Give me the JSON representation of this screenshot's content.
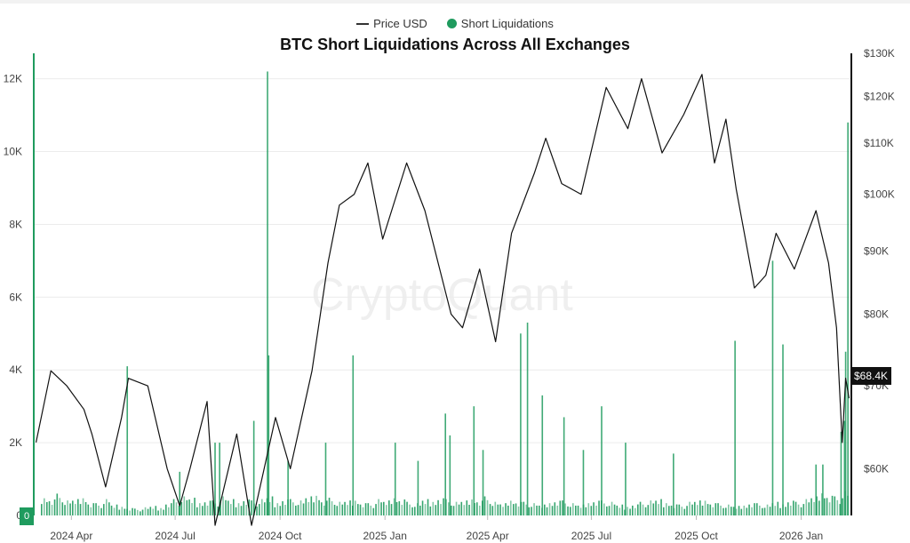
{
  "chart_data": {
    "type": "bar+line",
    "title": "BTC Short Liquidations Across All Exchanges",
    "legend": [
      "Price USD",
      "Short Liquidations"
    ],
    "legend_position": "top",
    "watermark": "CryptoQuant",
    "colors": {
      "price": "#111111",
      "liquidations": "#1f9b5e"
    },
    "x_ticks": [
      "2024 Apr",
      "2024 Jul",
      "2024 Oct",
      "2025 Jan",
      "2025 Apr",
      "2025 Jul",
      "2025 Oct",
      "2026 Jan"
    ],
    "x_tick_dates": [
      "2024-04-01",
      "2024-07-01",
      "2024-10-01",
      "2025-01-01",
      "2025-04-01",
      "2025-07-01",
      "2025-10-01",
      "2026-01-01"
    ],
    "xlim": [
      "2024-02-28",
      "2026-02-14"
    ],
    "left_axis": {
      "ticks": [
        "0",
        "2K",
        "4K",
        "6K",
        "8K",
        "10K",
        "12K"
      ],
      "values": [
        0,
        2000,
        4000,
        6000,
        8000,
        10000,
        12000
      ],
      "ylim": [
        0,
        12700
      ],
      "current_label": "0"
    },
    "right_axis": {
      "scale": "log",
      "ticks": [
        "$60K",
        "$70K",
        "$80K",
        "$90K",
        "$100K",
        "$110K",
        "$120K",
        "$130K"
      ],
      "values": [
        60000,
        70000,
        80000,
        90000,
        100000,
        110000,
        120000,
        130000
      ],
      "ylim": [
        55000,
        130000
      ],
      "current_label": "$68.4K"
    },
    "grid": true,
    "price": [
      [
        "2024-03-01",
        63000
      ],
      [
        "2024-03-14",
        72000
      ],
      [
        "2024-03-28",
        70000
      ],
      [
        "2024-04-12",
        67000
      ],
      [
        "2024-04-19",
        64000
      ],
      [
        "2024-05-01",
        58000
      ],
      [
        "2024-05-15",
        66000
      ],
      [
        "2024-05-21",
        71000
      ],
      [
        "2024-06-07",
        70000
      ],
      [
        "2024-06-24",
        60000
      ],
      [
        "2024-07-05",
        56000
      ],
      [
        "2024-07-14",
        60000
      ],
      [
        "2024-07-29",
        68000
      ],
      [
        "2024-08-05",
        54000
      ],
      [
        "2024-08-24",
        64000
      ],
      [
        "2024-09-06",
        54000
      ],
      [
        "2024-09-27",
        66000
      ],
      [
        "2024-10-10",
        60000
      ],
      [
        "2024-10-29",
        72000
      ],
      [
        "2024-11-12",
        88000
      ],
      [
        "2024-11-22",
        98000
      ],
      [
        "2024-12-05",
        100000
      ],
      [
        "2024-12-17",
        106000
      ],
      [
        "2024-12-30",
        92000
      ],
      [
        "2025-01-20",
        106000
      ],
      [
        "2025-02-05",
        97000
      ],
      [
        "2025-02-28",
        80000
      ],
      [
        "2025-03-10",
        78000
      ],
      [
        "2025-03-25",
        87000
      ],
      [
        "2025-04-08",
        76000
      ],
      [
        "2025-04-22",
        93000
      ],
      [
        "2025-05-12",
        104000
      ],
      [
        "2025-05-22",
        111000
      ],
      [
        "2025-06-05",
        102000
      ],
      [
        "2025-06-22",
        100000
      ],
      [
        "2025-07-14",
        122000
      ],
      [
        "2025-08-02",
        113000
      ],
      [
        "2025-08-14",
        124000
      ],
      [
        "2025-09-01",
        108000
      ],
      [
        "2025-09-20",
        116000
      ],
      [
        "2025-10-06",
        125000
      ],
      [
        "2025-10-17",
        106000
      ],
      [
        "2025-10-27",
        115000
      ],
      [
        "2025-11-05",
        101000
      ],
      [
        "2025-11-21",
        84000
      ],
      [
        "2025-12-01",
        86000
      ],
      [
        "2025-12-10",
        93000
      ],
      [
        "2025-12-26",
        87000
      ],
      [
        "2026-01-14",
        97000
      ],
      [
        "2026-01-25",
        88000
      ],
      [
        "2026-02-01",
        78000
      ],
      [
        "2026-02-06",
        63000
      ],
      [
        "2026-02-09",
        71000
      ],
      [
        "2026-02-12",
        68400
      ]
    ],
    "short_liquidations_spikes": [
      [
        "2024-05-20",
        4100
      ],
      [
        "2024-07-05",
        1200
      ],
      [
        "2024-08-05",
        2000
      ],
      [
        "2024-08-09",
        2000
      ],
      [
        "2024-09-08",
        2600
      ],
      [
        "2024-09-20",
        12200
      ],
      [
        "2024-09-21",
        4400
      ],
      [
        "2024-10-08",
        1500
      ],
      [
        "2024-11-10",
        2000
      ],
      [
        "2024-12-04",
        4400
      ],
      [
        "2025-01-10",
        2000
      ],
      [
        "2025-01-30",
        1500
      ],
      [
        "2025-02-23",
        2800
      ],
      [
        "2025-02-27",
        2200
      ],
      [
        "2025-03-20",
        3000
      ],
      [
        "2025-03-28",
        1800
      ],
      [
        "2025-04-30",
        5000
      ],
      [
        "2025-05-06",
        5300
      ],
      [
        "2025-05-19",
        3300
      ],
      [
        "2025-06-07",
        2700
      ],
      [
        "2025-06-24",
        1800
      ],
      [
        "2025-07-10",
        3000
      ],
      [
        "2025-07-31",
        2000
      ],
      [
        "2025-09-11",
        1700
      ],
      [
        "2025-11-04",
        4800
      ],
      [
        "2025-12-07",
        7000
      ],
      [
        "2025-12-16",
        4700
      ],
      [
        "2026-01-14",
        1400
      ],
      [
        "2026-01-20",
        1400
      ],
      [
        "2026-02-05",
        2300
      ],
      [
        "2026-02-08",
        2600
      ],
      [
        "2026-02-09",
        4500
      ],
      [
        "2026-02-11",
        10800
      ]
    ],
    "short_liquidations_weekly_baseline": [
      700,
      650,
      800,
      550,
      600,
      700,
      500,
      450,
      600,
      400,
      350,
      300,
      250,
      300,
      350,
      300,
      500,
      600,
      700,
      650,
      500,
      600,
      550,
      700,
      600,
      500,
      650,
      550,
      600,
      700,
      500,
      650,
      600,
      550,
      700,
      800,
      600,
      650,
      500,
      550,
      600,
      500,
      450,
      600,
      550,
      700,
      650,
      500,
      450,
      600,
      550,
      700,
      600,
      500,
      550,
      650,
      600,
      700,
      500,
      450,
      600,
      550,
      500,
      450,
      400,
      500,
      600,
      550,
      450,
      400,
      500,
      600,
      550,
      500,
      400,
      350,
      450,
      500,
      550,
      600,
      500,
      450,
      400,
      500,
      550,
      600,
      500,
      450,
      400,
      350,
      400,
      500,
      450,
      400,
      500,
      450,
      600,
      500,
      600,
      700,
      900,
      800,
      700,
      900
    ]
  }
}
